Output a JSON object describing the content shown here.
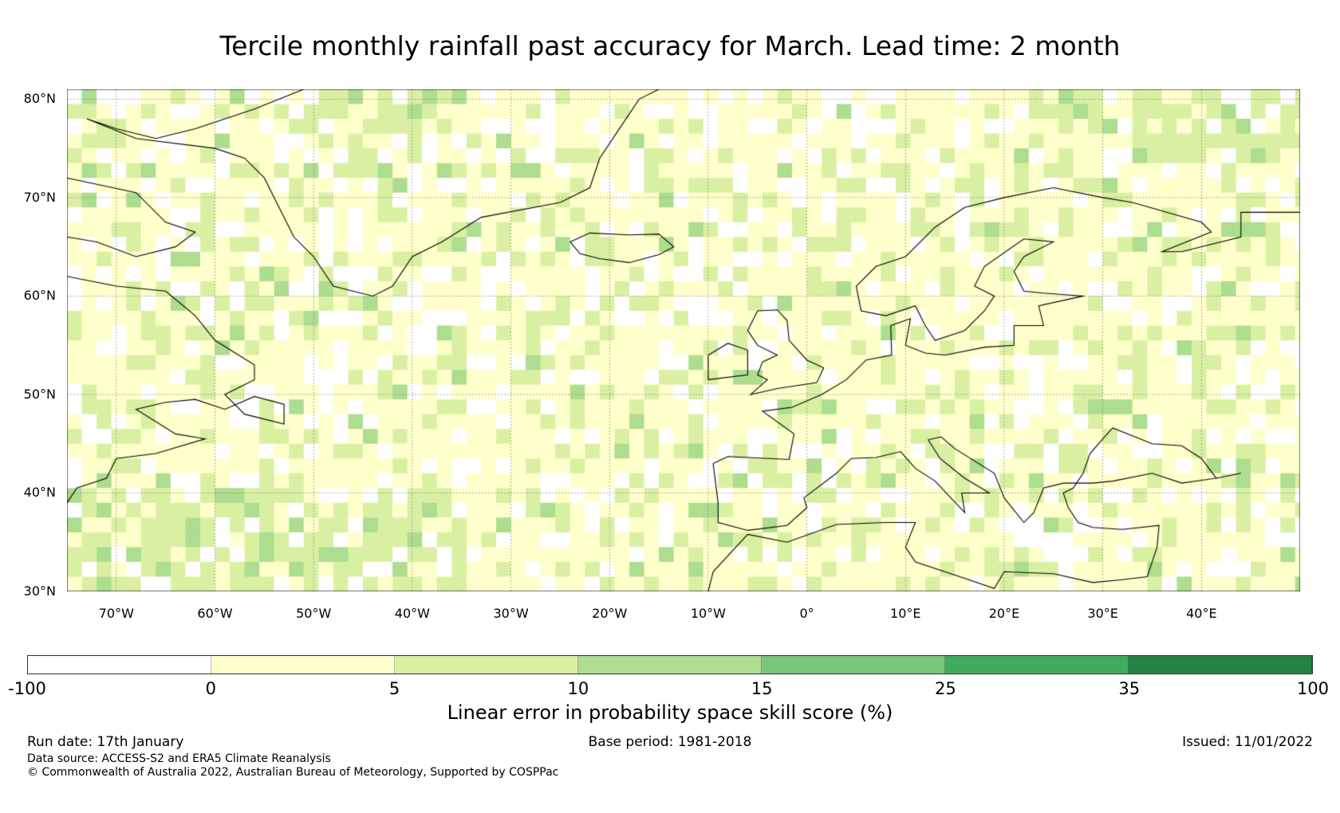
{
  "title": "Tercile monthly rainfall past accuracy for March. Lead time: 2 month",
  "map": {
    "lon_range": [
      -75,
      50
    ],
    "lat_range": [
      30,
      81
    ],
    "lat_labels": [
      "80°N",
      "70°N",
      "60°N",
      "50°N",
      "40°N",
      "30°N"
    ],
    "lat_values": [
      80,
      70,
      60,
      50,
      40,
      30
    ],
    "lon_labels": [
      "70°W",
      "60°W",
      "50°W",
      "40°W",
      "30°W",
      "20°W",
      "10°W",
      "0°",
      "10°E",
      "20°E",
      "30°E",
      "40°E"
    ],
    "lon_values": [
      -70,
      -60,
      -50,
      -40,
      -30,
      -20,
      -10,
      0,
      10,
      20,
      30,
      40
    ]
  },
  "colorbar": {
    "ticks": [
      "-100",
      "0",
      "5",
      "10",
      "15",
      "25",
      "35",
      "100"
    ],
    "colors": [
      "#ffffff",
      "#ffffcc",
      "#d9f0a3",
      "#addd8e",
      "#78c679",
      "#41ab5d",
      "#238443"
    ],
    "label": "Linear error in probability space skill score (%)"
  },
  "footer": {
    "run_date": "Run date: 17th January",
    "base_period": "Base period: 1981-2018",
    "issued": "Issued: 11/01/2022",
    "data_source": "Data source: ACCESS-S2 and ERA5 Climate Reanalysis",
    "copyright": "© Commonwealth of Australia 2022, Australian Bureau of Meteorology, Supported by COSPPac"
  }
}
